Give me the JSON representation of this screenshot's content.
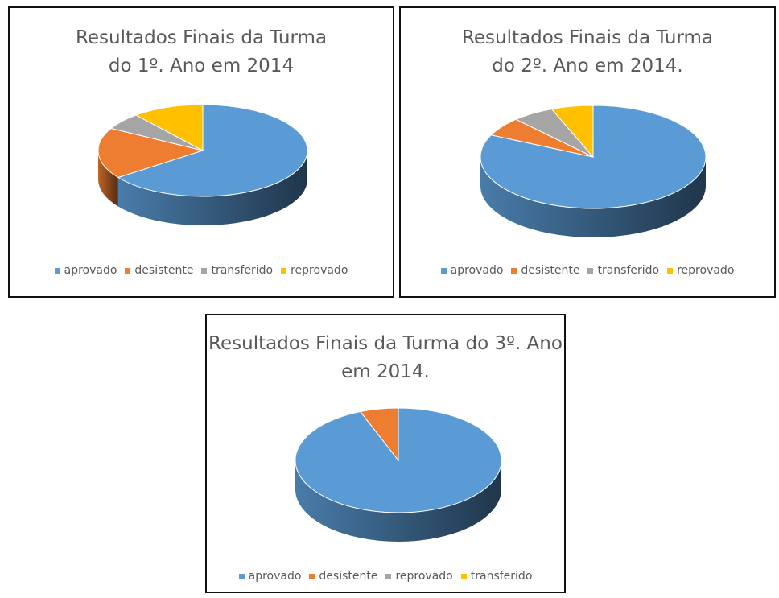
{
  "chart_data": [
    {
      "type": "pie",
      "title": "Resultados Finais da Turma do 1º. Ano em 2014",
      "categories": [
        "aprovado",
        "desistente",
        "transferido",
        "reprovado"
      ],
      "values": [
        65,
        18,
        6,
        11
      ],
      "colors": [
        "#5b9bd5",
        "#ed7d31",
        "#a5a5a5",
        "#ffc000"
      ],
      "three_d": true
    },
    {
      "type": "pie",
      "title": "Resultados Finais da Turma do 2º. Ano em 2014.",
      "categories": [
        "aprovado",
        "desistente",
        "transferido",
        "reprovado"
      ],
      "values": [
        82,
        6,
        6,
        6
      ],
      "colors": [
        "#5b9bd5",
        "#ed7d31",
        "#a5a5a5",
        "#ffc000"
      ],
      "three_d": true
    },
    {
      "type": "pie",
      "title": "Resultados Finais da Turma do 3º. Ano em 2014.",
      "categories": [
        "aprovado",
        "desistente",
        "reprovado",
        "transferido"
      ],
      "values": [
        94,
        6,
        0,
        0
      ],
      "colors": [
        "#5b9bd5",
        "#ed7d31",
        "#a5a5a5",
        "#ffc000"
      ],
      "three_d": true
    }
  ]
}
